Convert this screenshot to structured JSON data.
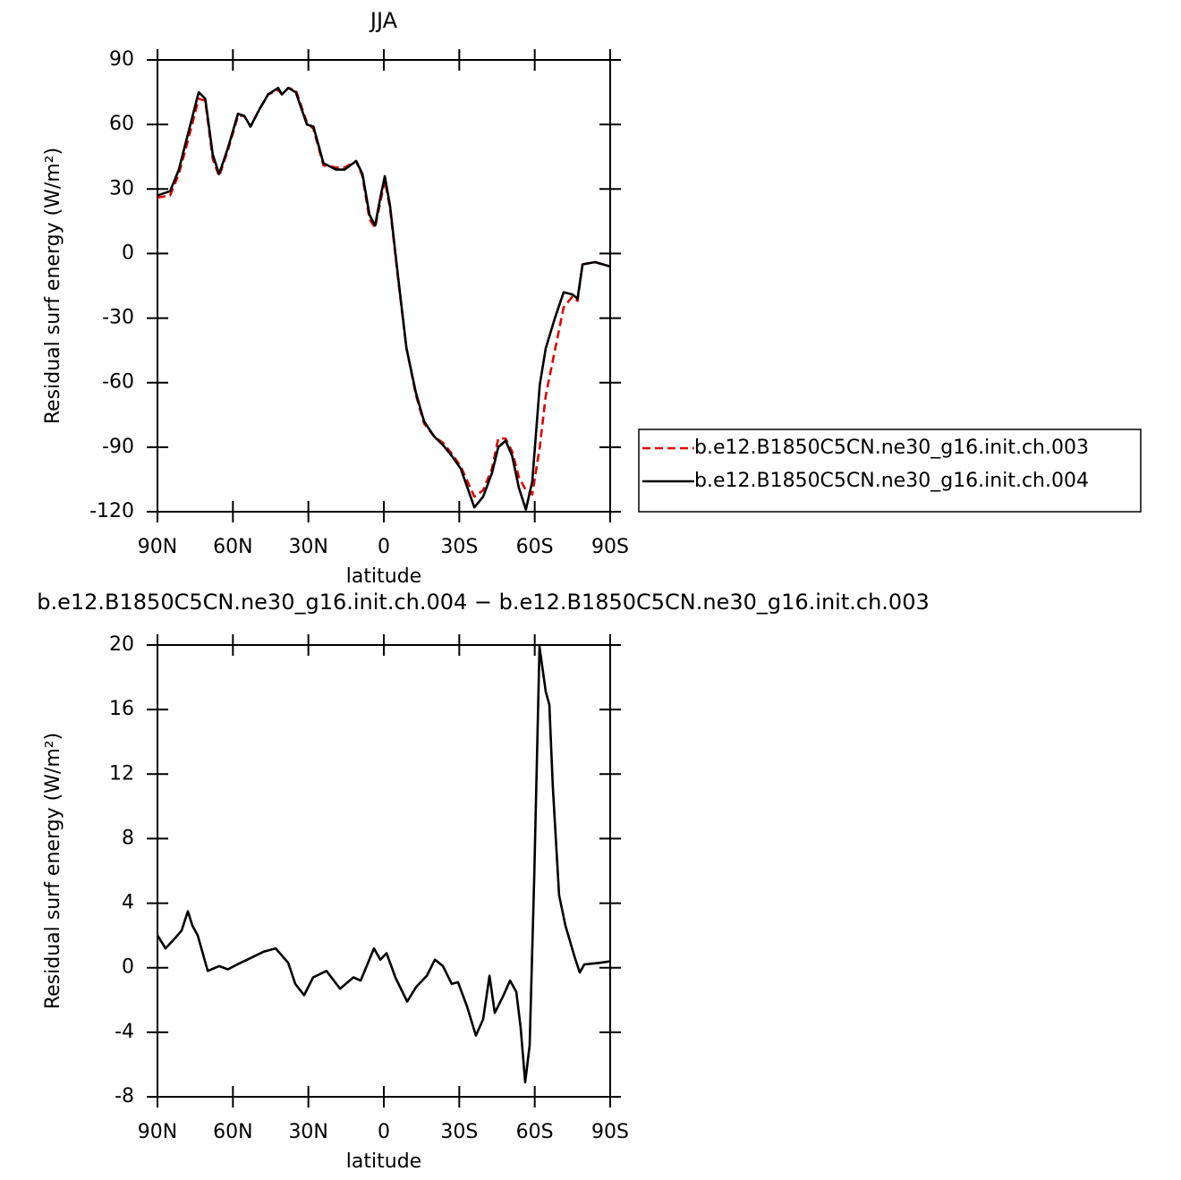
{
  "chart_data": [
    {
      "type": "line",
      "title": "JJA",
      "x_label": "latitude",
      "y_label": "Residual surf energy (W/m²)",
      "xlim": [
        90,
        -90
      ],
      "xticks": [
        {
          "value": 90,
          "label": "90N"
        },
        {
          "value": 60,
          "label": "60N"
        },
        {
          "value": 30,
          "label": "30N"
        },
        0,
        {
          "value": -30,
          "label": "30S"
        },
        {
          "value": -60,
          "label": "60S"
        },
        {
          "value": -90,
          "label": "90S"
        }
      ],
      "ylim": [
        -120,
        90
      ],
      "yticks": [
        -120,
        -90,
        -60,
        -30,
        0,
        30,
        60,
        90
      ],
      "legend": "right",
      "x": [
        90,
        85,
        81.5,
        78,
        73.6,
        71,
        68,
        65.5,
        62,
        58,
        55.5,
        53,
        49.5,
        46,
        42,
        40.5,
        38,
        35,
        30.6,
        28,
        24,
        19,
        15.6,
        11,
        8.5,
        5.7,
        3.5,
        1.4,
        -0.4,
        -2.5,
        -5.7,
        -9,
        -12.8,
        -16,
        -20,
        -23.5,
        -27,
        -30.6,
        -36,
        -39.5,
        -43,
        -45.5,
        -48.4,
        -51,
        -53.7,
        -56.5,
        -59,
        -62,
        -64.4,
        -68,
        -71.5,
        -75,
        -77,
        -79,
        -84,
        -90
      ],
      "series": [
        {
          "name": "b.e12.B1850C5CN.ne30_g16.init.ch.003",
          "color": "#e00000",
          "dashed": true,
          "values": [
            26,
            27,
            37,
            52,
            72,
            71,
            44,
            36,
            48,
            64,
            64,
            59,
            67,
            74,
            76,
            74,
            77,
            76,
            61,
            58,
            41,
            40,
            40,
            43,
            36,
            16,
            12,
            24,
            34,
            21,
            -12,
            -44,
            -66,
            -79,
            -85,
            -88,
            -93,
            -99,
            -113,
            -110,
            -100,
            -86,
            -86,
            -92,
            -104,
            -110,
            -112,
            -90,
            -66,
            -45,
            -25,
            -20,
            -22,
            -5,
            -4,
            -6
          ]
        },
        {
          "name": "b.e12.B1850C5CN.ne30_g16.init.ch.004",
          "color": "#000000",
          "dashed": false,
          "values": [
            27,
            29,
            39,
            55,
            75,
            72,
            46,
            37,
            49,
            65,
            64,
            59,
            67,
            74,
            77,
            74,
            77,
            75,
            60,
            59,
            42,
            39,
            39,
            43,
            37,
            18,
            13,
            26,
            36,
            22,
            -11,
            -44,
            -65,
            -78,
            -85,
            -89,
            -94,
            -100,
            -118,
            -113,
            -102,
            -90,
            -87,
            -94,
            -109,
            -119,
            -106,
            -61,
            -44,
            -30,
            -18,
            -19,
            -21,
            -5,
            -4,
            -6
          ]
        }
      ]
    },
    {
      "type": "line",
      "title": "b.e12.B1850C5CN.ne30_g16.init.ch.004 − b.e12.B1850C5CN.ne30_g16.init.ch.003",
      "x_label": "latitude",
      "y_label": "Residual surf energy (W/m²)",
      "xlim": [
        90,
        -90
      ],
      "xticks": [
        {
          "value": 90,
          "label": "90N"
        },
        {
          "value": 60,
          "label": "60N"
        },
        {
          "value": 30,
          "label": "30N"
        },
        0,
        {
          "value": -30,
          "label": "30S"
        },
        {
          "value": -60,
          "label": "60S"
        },
        {
          "value": -90,
          "label": "90S"
        }
      ],
      "ylim": [
        -8,
        20
      ],
      "yticks": [
        -8,
        -4,
        0,
        4,
        8,
        12,
        16,
        20
      ],
      "x": [
        90,
        86.8,
        83.2,
        80.4,
        77.9,
        76.1,
        74,
        70,
        65.5,
        62,
        58.3,
        53,
        47.7,
        43,
        38,
        35.2,
        31.7,
        28.1,
        22.8,
        17.4,
        12.1,
        9.2,
        3.9,
        1.4,
        -1.1,
        -4.6,
        -9.3,
        -12.8,
        -17.1,
        -20.3,
        -23.5,
        -27,
        -29.5,
        -33.1,
        -36.6,
        -39.5,
        -42,
        -44.1,
        -47.3,
        -50.2,
        -52.7,
        -54.4,
        -56.2,
        -58,
        -59.8,
        -61.9,
        -64.4,
        -65.8,
        -67.2,
        -69.7,
        -72.2,
        -75.8,
        -77.9,
        -79.7,
        -85.7,
        -90
      ],
      "series": [
        {
          "color": "#000000",
          "dashed": false,
          "values": [
            2.0,
            1.2,
            1.8,
            2.3,
            3.5,
            2.6,
            2.0,
            -0.2,
            0.1,
            -0.1,
            0.2,
            0.6,
            1.0,
            1.2,
            0.3,
            -1.0,
            -1.7,
            -0.6,
            -0.2,
            -1.3,
            -0.6,
            -0.8,
            1.2,
            0.5,
            0.9,
            -0.6,
            -2.1,
            -1.2,
            -0.5,
            0.5,
            0.1,
            -1.0,
            -0.9,
            -2.4,
            -4.2,
            -3.2,
            -0.5,
            -2.8,
            -1.8,
            -0.8,
            -1.5,
            -3.7,
            -7.1,
            -4.8,
            5.6,
            19.9,
            17.1,
            16.3,
            11.2,
            4.5,
            2.6,
            0.7,
            -0.3,
            0.2,
            0.3,
            0.4
          ]
        }
      ]
    }
  ]
}
